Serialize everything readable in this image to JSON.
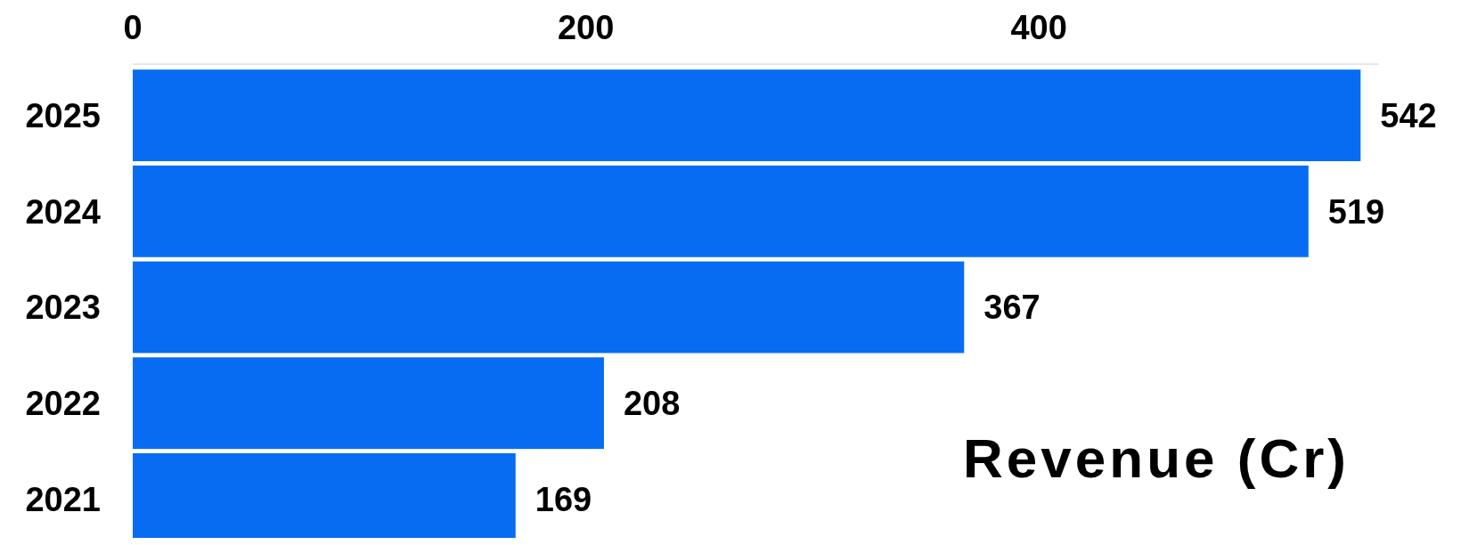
{
  "chart_data": {
    "type": "bar",
    "orientation": "horizontal",
    "categories": [
      "2025",
      "2024",
      "2023",
      "2022",
      "2021"
    ],
    "values": [
      542,
      519,
      367,
      208,
      169
    ],
    "color": "#086cf3",
    "xlim": [
      0,
      550
    ],
    "xticks": [
      0,
      200,
      400
    ],
    "xlabel": "Revenue (Cr)",
    "data_labels": true,
    "grid": false
  }
}
